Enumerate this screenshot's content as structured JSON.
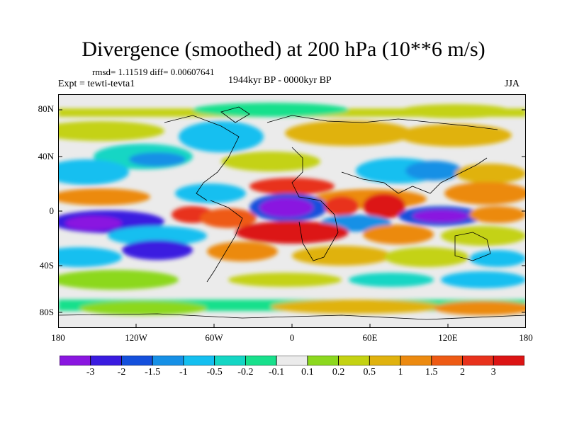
{
  "title": "Divergence (smoothed) at 200 hPa (10**6 m/s)",
  "stats": "rmsd= 1.11519 diff= 0.00607641",
  "experiment": "Expt = tewti-tevta1",
  "period": "1944kyr BP - 0000kyr BP",
  "season": "JJA",
  "map": {
    "projection": "cylindrical equidistant",
    "lat_labels": [
      "80N",
      "40N",
      "0",
      "40S",
      "80S"
    ],
    "lon_labels": [
      "180",
      "120W",
      "60W",
      "0",
      "60E",
      "120E",
      "180"
    ]
  },
  "colorbar": {
    "labels": [
      "-3",
      "-2",
      "-1.5",
      "-1",
      "-0.5",
      "-0.2",
      "-0.1",
      "0.1",
      "0.2",
      "0.5",
      "1",
      "1.5",
      "2",
      "3"
    ],
    "colors": [
      "#8a16e0",
      "#3a1be0",
      "#1450dc",
      "#1690e6",
      "#14bff0",
      "#14d6c4",
      "#18e08c",
      "#ebebeb",
      "#8cd81e",
      "#c4d212",
      "#e0b20e",
      "#ec8a10",
      "#ee5a14",
      "#e8321c",
      "#dc1414"
    ]
  }
}
